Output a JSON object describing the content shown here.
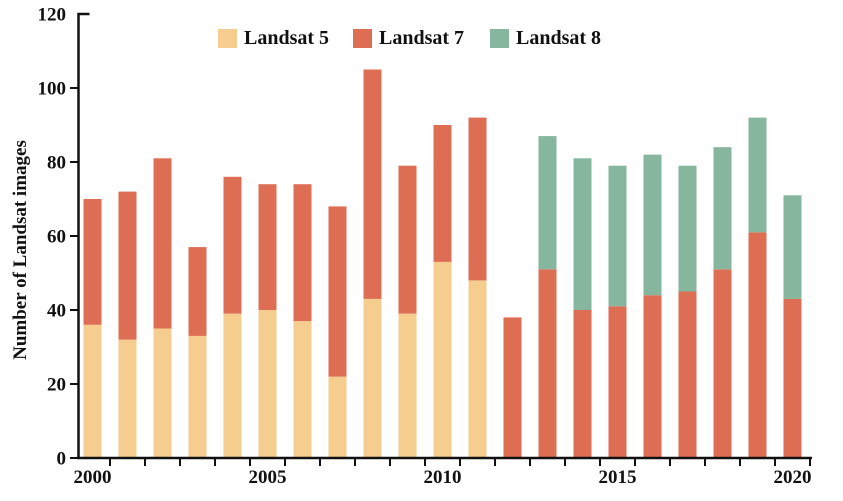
{
  "figure": {
    "background": "#ffffff",
    "axis_color": "#111111",
    "text_color": "#111111"
  },
  "legend": {
    "items": [
      {
        "label": "Landsat 5",
        "color": "#F4CD8F"
      },
      {
        "label": "Landsat 7",
        "color": "#DD6E53"
      },
      {
        "label": "Landsat 8",
        "color": "#86B69D"
      }
    ]
  },
  "chart_data": {
    "type": "bar",
    "stacked": true,
    "ylabel": "Number of Landsat images",
    "xlabel": "",
    "ylim": [
      0,
      120
    ],
    "yticks": [
      0,
      20,
      40,
      60,
      80,
      100,
      120
    ],
    "grid": false,
    "legend_position": "top",
    "categories": [
      2000,
      2001,
      2002,
      2003,
      2004,
      2005,
      2006,
      2007,
      2008,
      2009,
      2010,
      2011,
      2012,
      2013,
      2014,
      2015,
      2016,
      2017,
      2018,
      2019,
      2020
    ],
    "xtick_labels": [
      "2000",
      "2005",
      "2010",
      "2015",
      "2020"
    ],
    "xtick_label_indices": [
      0,
      5,
      10,
      15,
      20
    ],
    "series": [
      {
        "name": "Landsat 5",
        "color": "#F4CD8F",
        "values": [
          36,
          32,
          35,
          33,
          39,
          40,
          37,
          22,
          43,
          39,
          53,
          48,
          0,
          0,
          0,
          0,
          0,
          0,
          0,
          0,
          0
        ]
      },
      {
        "name": "Landsat 7",
        "color": "#DD6E53",
        "values": [
          34,
          40,
          46,
          24,
          37,
          34,
          37,
          46,
          62,
          40,
          37,
          44,
          38,
          51,
          40,
          41,
          44,
          45,
          51,
          61,
          43
        ]
      },
      {
        "name": "Landsat 8",
        "color": "#86B69D",
        "values": [
          0,
          0,
          0,
          0,
          0,
          0,
          0,
          0,
          0,
          0,
          0,
          0,
          0,
          36,
          41,
          38,
          38,
          34,
          33,
          31,
          28
        ]
      }
    ],
    "totals": [
      70,
      72,
      81,
      57,
      76,
      74,
      74,
      68,
      105,
      79,
      90,
      92,
      38,
      87,
      81,
      79,
      82,
      79,
      84,
      92,
      71
    ]
  }
}
